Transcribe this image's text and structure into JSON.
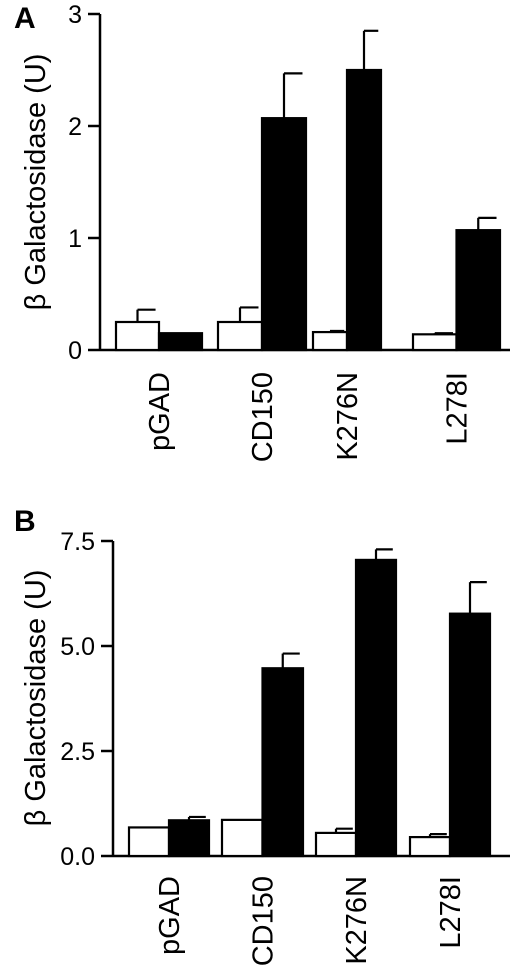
{
  "chart_data": [
    {
      "type": "bar",
      "panel_label": "A",
      "ylabel": "β Galactosidase (U)",
      "categories": [
        "pGAD",
        "CD150",
        "K276N",
        "L278I"
      ],
      "ylim": [
        0,
        3
      ],
      "yticks": [
        0,
        1,
        2,
        3
      ],
      "ytick_labels": [
        "0",
        "1",
        "2",
        "3"
      ],
      "series": [
        {
          "color": "#ffffff",
          "values": [
            0.25,
            0.25,
            0.16,
            0.14
          ],
          "errors": [
            0.11,
            0.13,
            0.01,
            0.01
          ]
        },
        {
          "color": "#000000",
          "values": [
            0.15,
            2.07,
            2.5,
            1.07
          ],
          "errors": [
            0.0,
            0.4,
            0.35,
            0.11
          ]
        }
      ]
    },
    {
      "type": "bar",
      "panel_label": "B",
      "ylabel": "β Galactosidase (U)",
      "categories": [
        "pGAD",
        "CD150",
        "K276N",
        "L278I"
      ],
      "ylim": [
        0,
        7.5
      ],
      "yticks": [
        0,
        2.5,
        5,
        7.5
      ],
      "ytick_labels": [
        "0.0",
        "2.5",
        "5.0",
        "7.5"
      ],
      "series": [
        {
          "color": "#ffffff",
          "values": [
            0.68,
            0.86,
            0.55,
            0.45
          ],
          "errors": [
            0.0,
            0.0,
            0.1,
            0.07
          ]
        },
        {
          "color": "#000000",
          "values": [
            0.85,
            4.47,
            7.05,
            5.77
          ],
          "errors": [
            0.08,
            0.35,
            0.25,
            0.75
          ]
        }
      ]
    }
  ]
}
